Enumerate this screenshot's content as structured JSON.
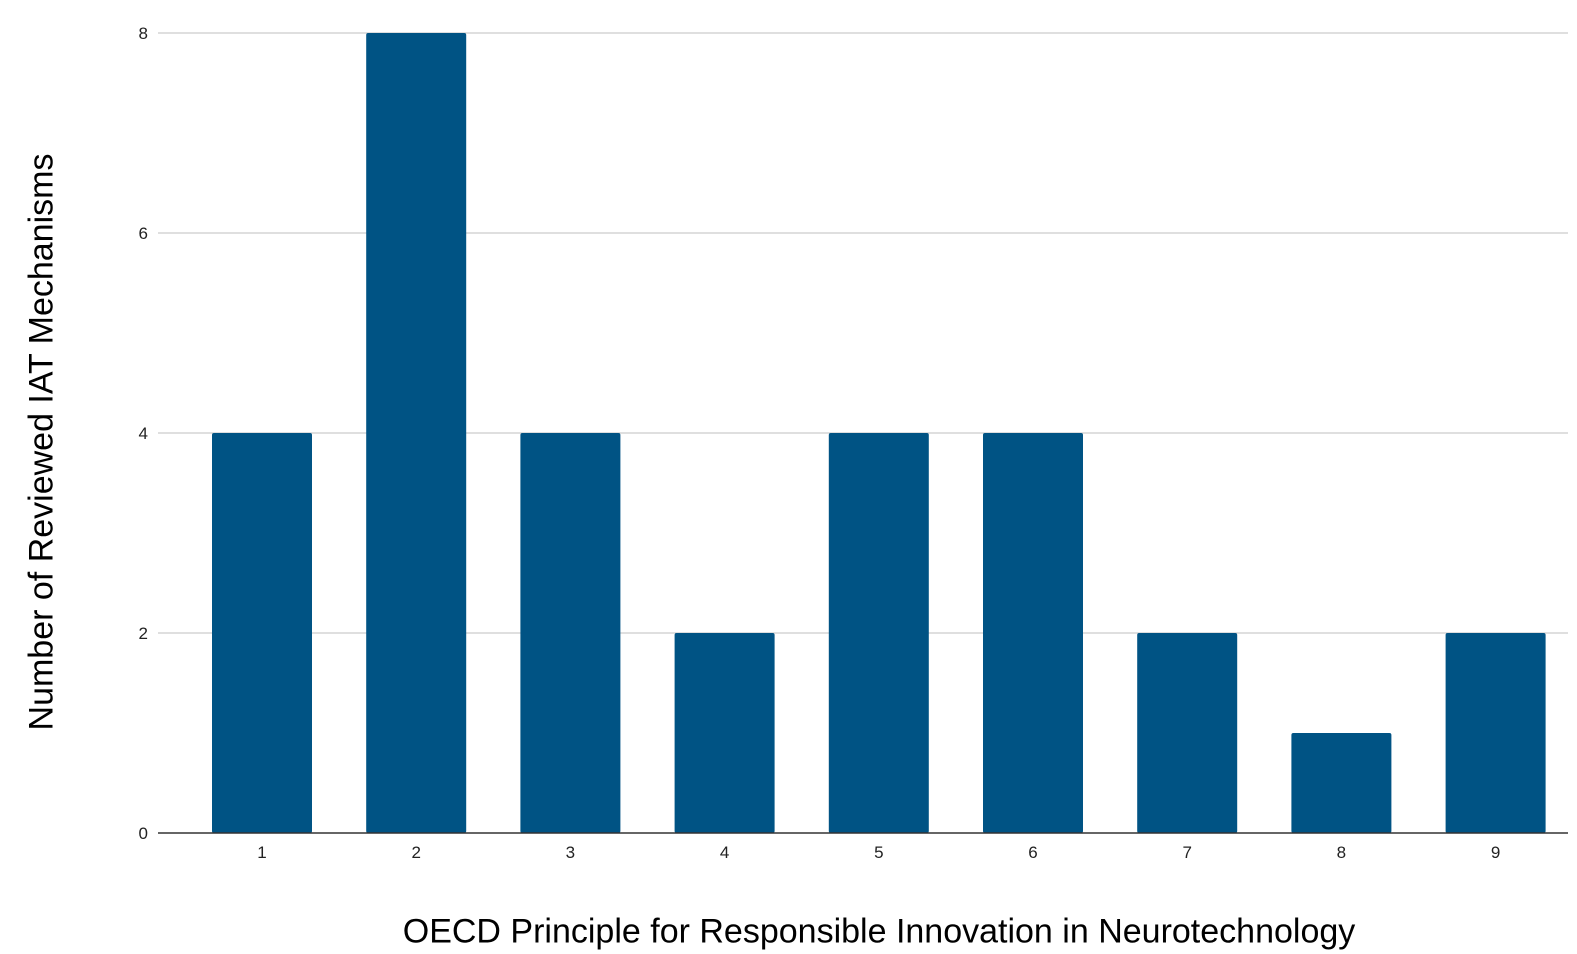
{
  "chart_data": {
    "type": "bar",
    "categories": [
      "1",
      "2",
      "3",
      "4",
      "5",
      "6",
      "7",
      "8",
      "9"
    ],
    "values": [
      4,
      8,
      4,
      2,
      4,
      4,
      2,
      1,
      2
    ],
    "title": "",
    "xlabel": "OECD Principle for Responsible Innovation in Neurotechnology",
    "ylabel": "Number of Reviewed IAT Mechanisms",
    "ylim": [
      0,
      8
    ],
    "yticks": [
      0,
      2,
      4,
      6,
      8
    ],
    "grid": true,
    "legend": "none",
    "colors": {
      "bar": "#005384",
      "grid": "#cccccc",
      "axis": "#333333"
    }
  }
}
